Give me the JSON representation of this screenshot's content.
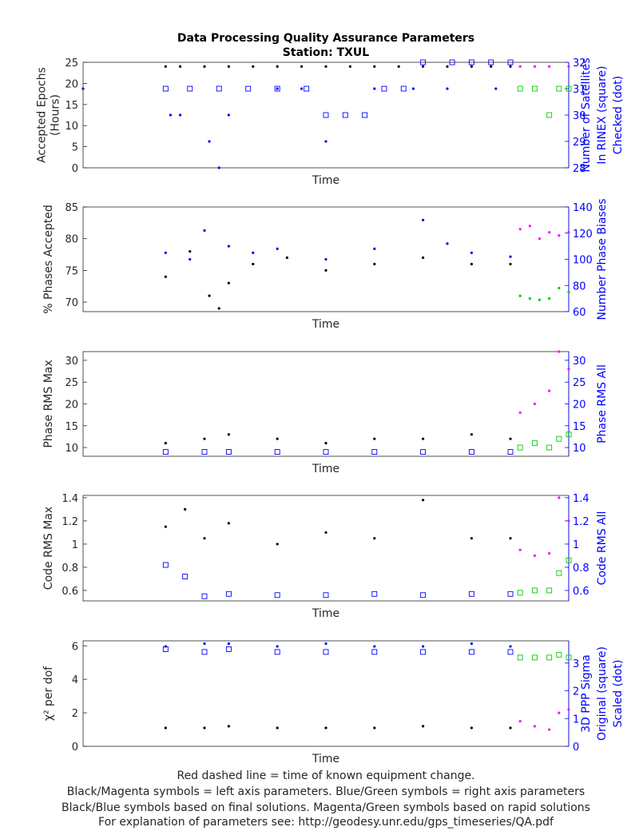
{
  "title": "Data Processing Quality Assurance Parameters",
  "subtitle": "Station: TXUL",
  "footer": [
    "Red dashed line = time of known equipment change.",
    "Black/Magenta symbols = left axis parameters. Blue/Green symbols = right axis parameters",
    "Black/Blue symbols based on final solutions.  Magenta/Green symbols based on rapid solutions",
    "For explanation of parameters see: http://geodesy.unr.edu/gps_timeseries/QA.pdf"
  ],
  "colors": {
    "left_final": "#000000",
    "right_final": "#0000ff",
    "left_rapid": "#ff00ff",
    "right_rapid": "#00cc00"
  },
  "chart_data": [
    {
      "type": "scatter",
      "xlabel": "Time",
      "ylabel": [
        "Accepted Epochs",
        "(Hours)"
      ],
      "ylim": [
        0,
        25
      ],
      "yticks": [
        0,
        5,
        10,
        15,
        20,
        25
      ],
      "y2label": [
        "Number of Satellites",
        "In RINEX (square)",
        "Checked (dot)"
      ],
      "y2lim": [
        28,
        32
      ],
      "y2ticks": [
        28,
        29,
        30,
        31,
        32
      ],
      "x_range": [
        0,
        1
      ],
      "series": [
        {
          "role": "left_final",
          "marker": "dot",
          "x": [
            0.17,
            0.2,
            0.25,
            0.3,
            0.35,
            0.4,
            0.45,
            0.5,
            0.55,
            0.6,
            0.65,
            0.7,
            0.75,
            0.8,
            0.84,
            0.88
          ],
          "y": [
            24,
            24,
            24,
            24,
            24,
            24,
            24,
            24,
            24,
            24,
            24,
            24,
            24,
            24,
            24,
            24
          ]
        },
        {
          "role": "right_final",
          "marker": "square",
          "x": [
            0.17,
            0.22,
            0.28,
            0.34,
            0.4,
            0.46,
            0.5,
            0.54,
            0.58,
            0.62,
            0.66,
            0.7,
            0.76,
            0.8,
            0.84,
            0.88
          ],
          "y": [
            31,
            31,
            31,
            31,
            31,
            31,
            30,
            30,
            30,
            31,
            31,
            32,
            32,
            32,
            32,
            32
          ]
        },
        {
          "role": "right_final",
          "marker": "dot",
          "x": [
            0.0,
            0.18,
            0.2,
            0.26,
            0.28,
            0.3,
            0.4,
            0.45,
            0.5,
            0.6,
            0.68,
            0.75,
            0.85
          ],
          "y": [
            31,
            30,
            30,
            29,
            28,
            30,
            31,
            31,
            29,
            31,
            31,
            31,
            31
          ]
        },
        {
          "role": "left_rapid",
          "marker": "dot",
          "x": [
            0.9,
            0.93,
            0.96,
            1.0
          ],
          "y": [
            24,
            24,
            24,
            24
          ]
        },
        {
          "role": "right_rapid",
          "marker": "square",
          "x": [
            0.9,
            0.93,
            0.96,
            0.98,
            1.0
          ],
          "y": [
            31,
            31,
            30,
            31,
            31
          ]
        }
      ]
    },
    {
      "type": "scatter",
      "xlabel": "Time",
      "ylabel": [
        "% Phases Accepted"
      ],
      "ylim": [
        68.5,
        85
      ],
      "yticks": [
        70,
        75,
        80,
        85
      ],
      "y2label": [
        "Number Phase Biases"
      ],
      "y2lim": [
        60,
        140
      ],
      "y2ticks": [
        60,
        80,
        100,
        120,
        140
      ],
      "x_range": [
        0,
        1
      ],
      "series": [
        {
          "role": "left_final",
          "marker": "dot",
          "x": [
            0.17,
            0.22,
            0.26,
            0.28,
            0.3,
            0.35,
            0.42,
            0.5,
            0.6,
            0.7,
            0.8,
            0.88
          ],
          "y": [
            74,
            78,
            71,
            69,
            73,
            76,
            77,
            75,
            76,
            77,
            76,
            76
          ]
        },
        {
          "role": "right_final",
          "marker": "dot",
          "x": [
            0.17,
            0.22,
            0.25,
            0.3,
            0.35,
            0.4,
            0.5,
            0.6,
            0.7,
            0.75,
            0.8,
            0.88
          ],
          "y": [
            105,
            100,
            122,
            110,
            105,
            108,
            100,
            108,
            130,
            112,
            105,
            102
          ]
        },
        {
          "role": "left_rapid",
          "marker": "dot",
          "x": [
            0.9,
            0.92,
            0.94,
            0.96,
            0.98,
            1.0
          ],
          "y": [
            81.5,
            82,
            80,
            81,
            80.5,
            81
          ]
        },
        {
          "role": "right_rapid",
          "marker": "dot",
          "x": [
            0.9,
            0.92,
            0.94,
            0.96,
            0.98,
            1.0
          ],
          "y": [
            72,
            70,
            69,
            70,
            78,
            75
          ]
        }
      ]
    },
    {
      "type": "scatter",
      "xlabel": "Time",
      "ylabel": [
        "Phase RMS Max"
      ],
      "ylim": [
        8,
        32
      ],
      "yticks": [
        10,
        15,
        20,
        25,
        30
      ],
      "y2label": [
        "Phase RMS All"
      ],
      "y2lim": [
        8,
        32
      ],
      "y2ticks": [
        10,
        15,
        20,
        25,
        30
      ],
      "x_range": [
        0,
        1
      ],
      "series": [
        {
          "role": "left_final",
          "marker": "dot",
          "x": [
            0.17,
            0.25,
            0.3,
            0.4,
            0.5,
            0.6,
            0.7,
            0.8,
            0.88
          ],
          "y": [
            11,
            12,
            13,
            12,
            11,
            12,
            12,
            13,
            12
          ]
        },
        {
          "role": "right_final",
          "marker": "square",
          "x": [
            0.17,
            0.25,
            0.3,
            0.4,
            0.5,
            0.6,
            0.7,
            0.8,
            0.88
          ],
          "y": [
            9,
            9,
            9,
            9,
            9,
            9,
            9,
            9,
            9
          ]
        },
        {
          "role": "left_rapid",
          "marker": "dot",
          "x": [
            0.9,
            0.93,
            0.96,
            0.98,
            1.0
          ],
          "y": [
            18,
            20,
            23,
            32,
            28
          ]
        },
        {
          "role": "right_rapid",
          "marker": "square",
          "x": [
            0.9,
            0.93,
            0.96,
            0.98,
            1.0
          ],
          "y": [
            10,
            11,
            10,
            12,
            13
          ]
        }
      ]
    },
    {
      "type": "scatter",
      "xlabel": "Time",
      "ylabel": [
        "Code RMS Max"
      ],
      "ylim": [
        0.51,
        1.42
      ],
      "yticks": [
        0.6,
        0.8,
        1,
        1.2,
        1.4
      ],
      "y2label": [
        "Code RMS All"
      ],
      "y2lim": [
        0.51,
        1.42
      ],
      "y2ticks": [
        0.6,
        0.8,
        1,
        1.2,
        1.4
      ],
      "x_range": [
        0,
        1
      ],
      "series": [
        {
          "role": "left_final",
          "marker": "dot",
          "x": [
            0.17,
            0.21,
            0.25,
            0.3,
            0.4,
            0.5,
            0.6,
            0.7,
            0.8,
            0.88
          ],
          "y": [
            1.15,
            1.3,
            1.05,
            1.18,
            1.0,
            1.1,
            1.05,
            1.38,
            1.05,
            1.05
          ]
        },
        {
          "role": "right_final",
          "marker": "square",
          "x": [
            0.17,
            0.21,
            0.25,
            0.3,
            0.4,
            0.5,
            0.6,
            0.7,
            0.8,
            0.88
          ],
          "y": [
            0.82,
            0.72,
            0.55,
            0.57,
            0.56,
            0.56,
            0.57,
            0.56,
            0.57,
            0.57
          ]
        },
        {
          "role": "left_rapid",
          "marker": "dot",
          "x": [
            0.9,
            0.93,
            0.96,
            0.98,
            1.0
          ],
          "y": [
            0.95,
            0.9,
            0.92,
            1.4,
            1.2
          ]
        },
        {
          "role": "right_rapid",
          "marker": "square",
          "x": [
            0.9,
            0.93,
            0.96,
            0.98,
            1.0
          ],
          "y": [
            0.58,
            0.6,
            0.6,
            0.75,
            0.86
          ]
        }
      ]
    },
    {
      "type": "scatter",
      "xlabel": "Time",
      "ylabel": [
        "χ² per dof"
      ],
      "ylim": [
        0,
        6.3
      ],
      "yticks": [
        0,
        2,
        4,
        6
      ],
      "y2label": [
        "3D PPP Sigma",
        "Original (square)",
        "Scaled (dot)"
      ],
      "y2lim": [
        0,
        3.8
      ],
      "y2ticks": [
        0,
        1,
        2,
        3
      ],
      "x_range": [
        0,
        1
      ],
      "series": [
        {
          "role": "left_final",
          "marker": "dot",
          "x": [
            0.17,
            0.25,
            0.3,
            0.4,
            0.5,
            0.6,
            0.7,
            0.8,
            0.88
          ],
          "y": [
            1.1,
            1.1,
            1.2,
            1.1,
            1.1,
            1.1,
            1.2,
            1.1,
            1.1
          ]
        },
        {
          "role": "right_final",
          "marker": "square",
          "x": [
            0.17,
            0.25,
            0.3,
            0.4,
            0.5,
            0.6,
            0.7,
            0.8,
            0.88
          ],
          "y": [
            3.5,
            3.4,
            3.5,
            3.4,
            3.4,
            3.4,
            3.4,
            3.4,
            3.4
          ]
        },
        {
          "role": "right_final",
          "marker": "dot",
          "x": [
            0.17,
            0.25,
            0.3,
            0.4,
            0.5,
            0.6,
            0.7,
            0.8,
            0.88
          ],
          "y": [
            3.6,
            3.7,
            3.7,
            3.6,
            3.7,
            3.6,
            3.6,
            3.7,
            3.6
          ]
        },
        {
          "role": "left_rapid",
          "marker": "dot",
          "x": [
            0.9,
            0.93,
            0.96,
            0.98,
            1.0
          ],
          "y": [
            1.5,
            1.2,
            1.0,
            2.0,
            2.2
          ]
        },
        {
          "role": "right_rapid",
          "marker": "square",
          "x": [
            0.9,
            0.93,
            0.96,
            0.98,
            1.0
          ],
          "y": [
            3.2,
            3.2,
            3.2,
            3.3,
            3.2
          ]
        }
      ]
    }
  ]
}
